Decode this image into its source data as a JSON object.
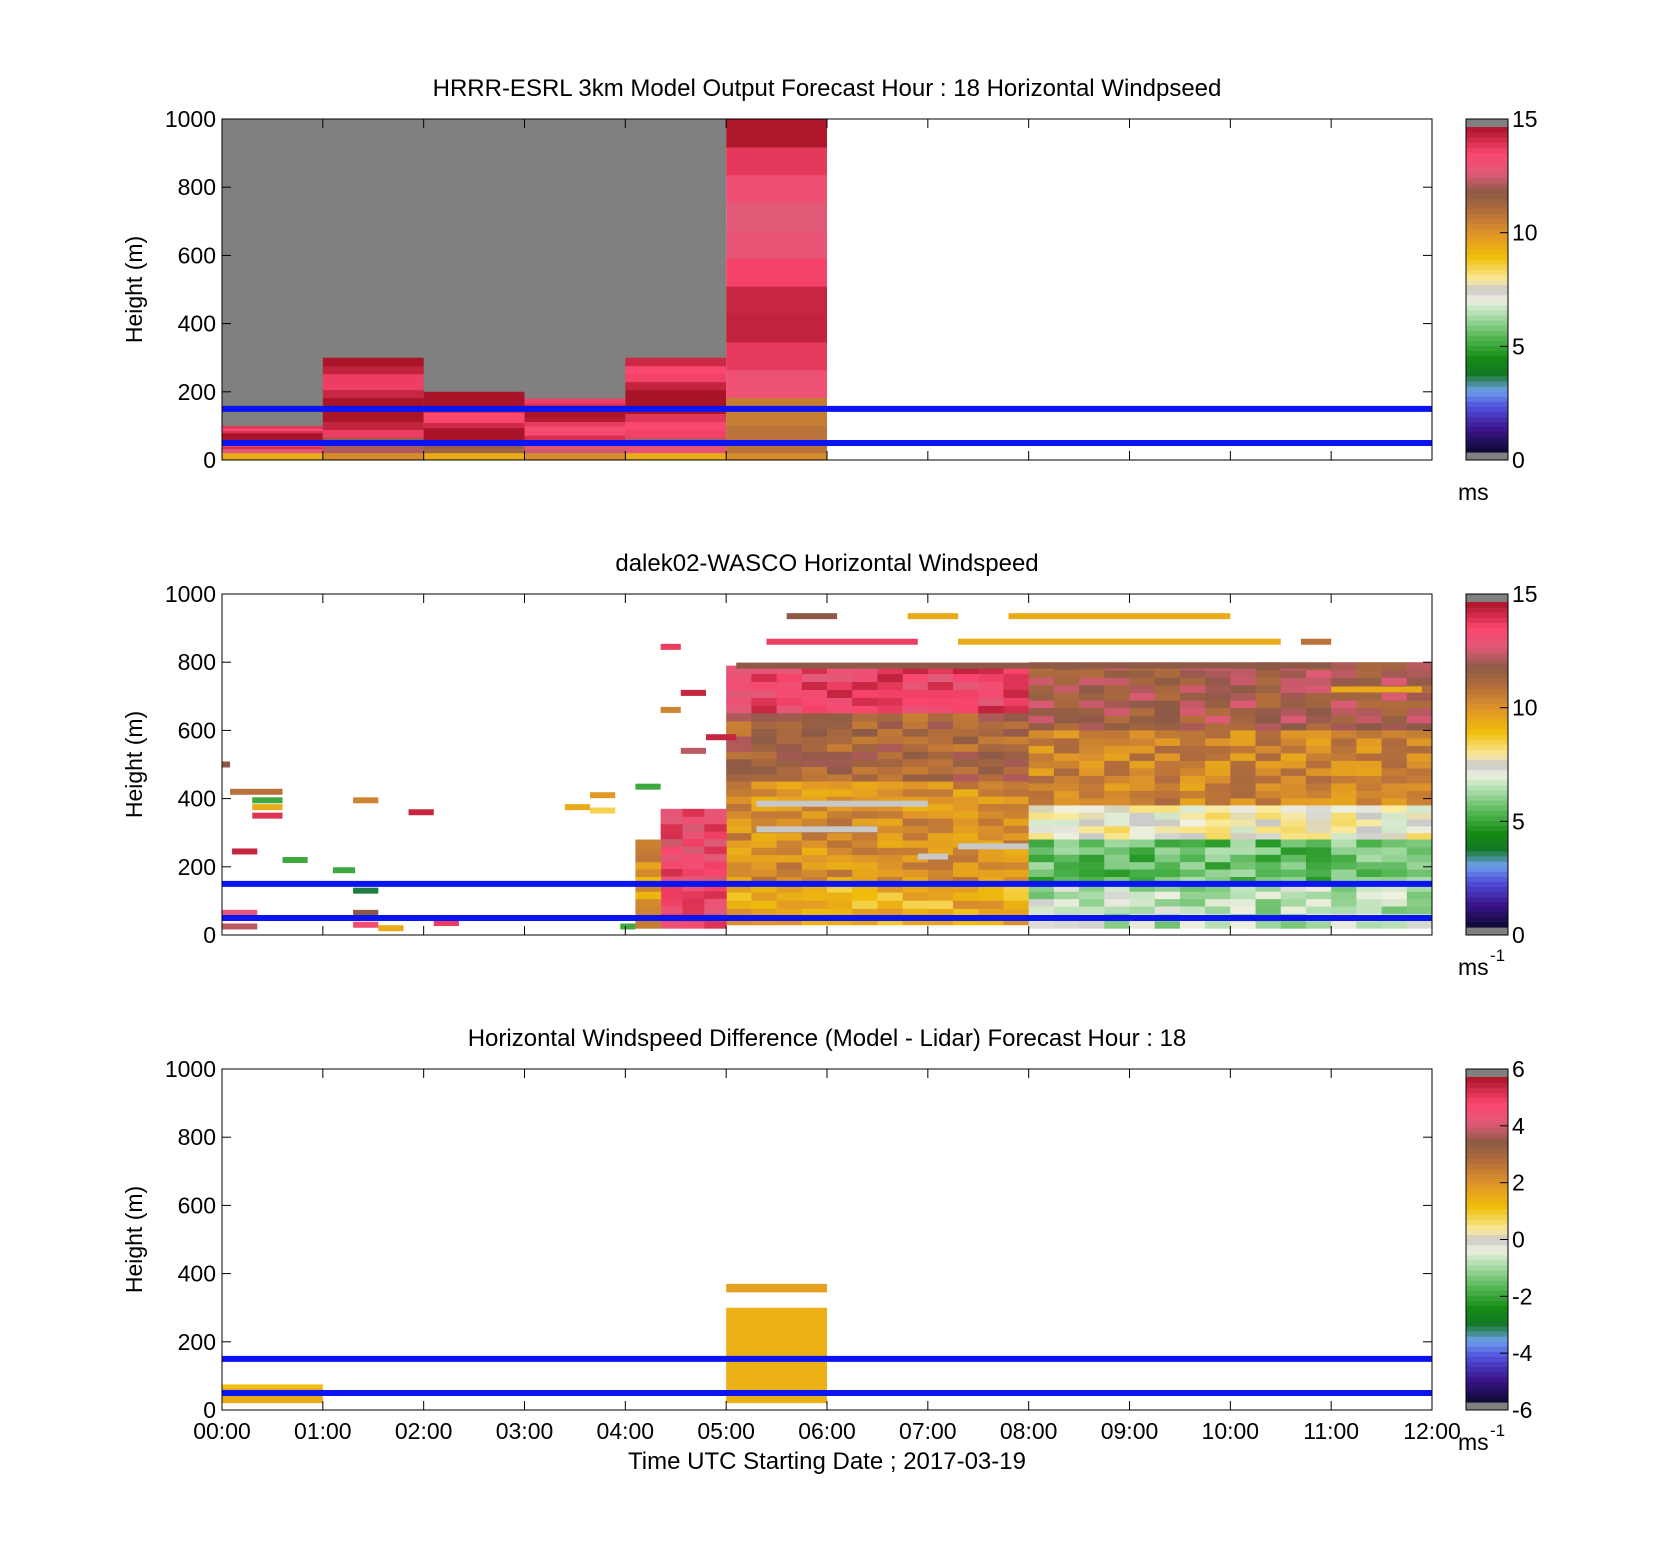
{
  "figure": {
    "xlabel": "Time UTC  Starting Date ; 2017-03-19",
    "x_ticks": [
      "00:00",
      "01:00",
      "02:00",
      "03:00",
      "04:00",
      "05:00",
      "06:00",
      "07:00",
      "08:00",
      "09:00",
      "10:00",
      "11:00",
      "12:00"
    ]
  },
  "chart_data": [
    {
      "type": "heatmap",
      "title": "HRRR-ESRL 3km Model Output   Forecast Hour : 18 Horizontal Windpseed",
      "xlabel": "",
      "ylabel": "Height (m)",
      "xlim_hours": [
        0,
        12
      ],
      "ylim": [
        0,
        1000
      ],
      "y_ticks": [
        "0",
        "200",
        "400",
        "600",
        "800",
        "1000"
      ],
      "colorbar": {
        "min": 0,
        "max": 15,
        "ticks": [
          "0",
          "5",
          "10",
          "15"
        ],
        "unit": "ms"
      },
      "reference_lines_m": [
        50,
        150
      ],
      "columns": [
        {
          "t0": 0,
          "t1": 1,
          "top": 100,
          "value": 14.6
        },
        {
          "t0": 1,
          "t1": 2,
          "top": 300,
          "value": 14.8
        },
        {
          "t0": 2,
          "t1": 3,
          "top": 200,
          "value": 14.6
        },
        {
          "t0": 3,
          "t1": 4,
          "top": 180,
          "value": 14.4
        },
        {
          "t0": 4,
          "t1": 5,
          "top": 300,
          "value": 14.6
        },
        {
          "t0": 5,
          "t1": 6,
          "top": 1000,
          "value": 13.8
        }
      ],
      "missing_region_hours": [
        0,
        5
      ],
      "surface_value": 9.5
    },
    {
      "type": "heatmap",
      "title": "dalek02-WASCO  Horizontal Windspeed",
      "xlabel": "",
      "ylabel": "Height (m)",
      "xlim_hours": [
        0,
        12
      ],
      "ylim": [
        0,
        1000
      ],
      "y_ticks": [
        "0",
        "200",
        "400",
        "600",
        "800",
        "1000"
      ],
      "colorbar": {
        "min": 0,
        "max": 15,
        "ticks": [
          "0",
          "5",
          "10",
          "15"
        ],
        "unit": "ms",
        "unit_exp": "-1"
      },
      "reference_lines_m": [
        50,
        150
      ],
      "layers": [
        {
          "t0": 5.0,
          "t1": 8.0,
          "h0": 650,
          "h1": 790,
          "value": 13.8
        },
        {
          "t0": 5.0,
          "t1": 8.0,
          "h0": 450,
          "h1": 650,
          "value": 11.5
        },
        {
          "t0": 5.0,
          "t1": 8.0,
          "h0": 150,
          "h1": 450,
          "value": 10.2
        },
        {
          "t0": 5.0,
          "t1": 8.0,
          "h0": 30,
          "h1": 150,
          "value": 9.4
        },
        {
          "t0": 8.0,
          "t1": 12.0,
          "h0": 600,
          "h1": 800,
          "value": 12.0
        },
        {
          "t0": 8.0,
          "t1": 12.0,
          "h0": 380,
          "h1": 600,
          "value": 10.5
        },
        {
          "t0": 8.0,
          "t1": 12.0,
          "h0": 280,
          "h1": 380,
          "value": 7.6
        },
        {
          "t0": 8.0,
          "t1": 12.0,
          "h0": 150,
          "h1": 280,
          "value": 5.5
        },
        {
          "t0": 8.0,
          "t1": 12.0,
          "h0": 20,
          "h1": 150,
          "value": 6.5
        },
        {
          "t0": 4.35,
          "t1": 5.0,
          "h0": 20,
          "h1": 370,
          "value": 13.5
        },
        {
          "t0": 4.1,
          "t1": 4.35,
          "h0": 20,
          "h1": 280,
          "value": 10.0
        }
      ],
      "segments": [
        {
          "t0": 0.0,
          "t1": 0.08,
          "h": 500,
          "value": 12.0
        },
        {
          "t0": 0.08,
          "t1": 0.6,
          "h": 420,
          "value": 11.0
        },
        {
          "t0": 0.3,
          "t1": 0.6,
          "h": 395,
          "value": 5.0
        },
        {
          "t0": 0.3,
          "t1": 0.6,
          "h": 375,
          "value": 9.5
        },
        {
          "t0": 0.3,
          "t1": 0.6,
          "h": 350,
          "value": 14.2
        },
        {
          "t0": 0.1,
          "t1": 0.35,
          "h": 245,
          "value": 14.6
        },
        {
          "t0": 0.6,
          "t1": 0.85,
          "h": 220,
          "value": 5.0
        },
        {
          "t0": 1.1,
          "t1": 1.32,
          "h": 190,
          "value": 5.0
        },
        {
          "t0": 0.0,
          "t1": 0.35,
          "h": 65,
          "value": 13.0
        },
        {
          "t0": 0.0,
          "t1": 0.35,
          "h": 25,
          "value": 12.5
        },
        {
          "t0": 1.3,
          "t1": 1.55,
          "h": 130,
          "value": 3.5
        },
        {
          "t0": 1.3,
          "t1": 1.55,
          "h": 65,
          "value": 12.0
        },
        {
          "t0": 1.3,
          "t1": 1.55,
          "h": 30,
          "value": 13.5
        },
        {
          "t0": 1.3,
          "t1": 1.55,
          "h": 395,
          "value": 10.5
        },
        {
          "t0": 1.85,
          "t1": 2.1,
          "h": 360,
          "value": 14.6
        },
        {
          "t0": 2.1,
          "t1": 2.35,
          "h": 35,
          "value": 14.0
        },
        {
          "t0": 1.55,
          "t1": 1.8,
          "h": 20,
          "value": 9.5
        },
        {
          "t0": 3.4,
          "t1": 3.65,
          "h": 375,
          "value": 9.5
        },
        {
          "t0": 3.65,
          "t1": 3.9,
          "h": 410,
          "value": 10.0
        },
        {
          "t0": 3.65,
          "t1": 3.9,
          "h": 365,
          "value": 8.5
        },
        {
          "t0": 4.1,
          "t1": 4.35,
          "h": 435,
          "value": 5.0
        },
        {
          "t0": 3.95,
          "t1": 4.1,
          "h": 25,
          "value": 5.0
        },
        {
          "t0": 4.35,
          "t1": 4.55,
          "h": 845,
          "value": 14.0
        },
        {
          "t0": 4.55,
          "t1": 4.8,
          "h": 710,
          "value": 14.6
        },
        {
          "t0": 4.35,
          "t1": 4.55,
          "h": 660,
          "value": 10.5
        },
        {
          "t0": 4.55,
          "t1": 4.8,
          "h": 540,
          "value": 12.5
        },
        {
          "t0": 4.8,
          "t1": 5.1,
          "h": 580,
          "value": 14.6
        },
        {
          "t0": 5.6,
          "t1": 6.1,
          "h": 935,
          "value": 12.0
        },
        {
          "t0": 5.4,
          "t1": 6.9,
          "h": 860,
          "value": 14.0
        },
        {
          "t0": 5.1,
          "t1": 11.0,
          "h": 790,
          "value": 12.0
        },
        {
          "t0": 6.8,
          "t1": 7.3,
          "h": 935,
          "value": 9.5
        },
        {
          "t0": 7.8,
          "t1": 10.0,
          "h": 935,
          "value": 9.5
        },
        {
          "t0": 7.3,
          "t1": 10.5,
          "h": 860,
          "value": 9.5
        },
        {
          "t0": 10.7,
          "t1": 11.0,
          "h": 860,
          "value": 11.0
        },
        {
          "t0": 11.0,
          "t1": 11.9,
          "h": 720,
          "value": 9.5
        },
        {
          "t0": 5.3,
          "t1": 7.0,
          "h": 385,
          "value": 7.5
        },
        {
          "t0": 5.3,
          "t1": 6.5,
          "h": 310,
          "value": 7.5
        },
        {
          "t0": 7.3,
          "t1": 8.0,
          "h": 260,
          "value": 7.5
        },
        {
          "t0": 6.9,
          "t1": 7.2,
          "h": 230,
          "value": 7.5
        }
      ]
    },
    {
      "type": "heatmap",
      "title": "Horizontal Windspeed Difference (Model - Lidar) Forecast Hour : 18",
      "xlabel": "Time UTC  Starting Date ; 2017-03-19",
      "ylabel": "Height (m)",
      "xlim_hours": [
        0,
        12
      ],
      "ylim": [
        0,
        1000
      ],
      "y_ticks": [
        "0",
        "200",
        "400",
        "600",
        "800",
        "1000"
      ],
      "colorbar": {
        "min": -6,
        "max": 6,
        "ticks": [
          "-6",
          "-4",
          "-2",
          "0",
          "2",
          "4",
          "6"
        ],
        "unit": "ms",
        "unit_exp": "-1"
      },
      "reference_lines_m": [
        50,
        150
      ],
      "cells": [
        {
          "t0": 0,
          "t1": 1,
          "h0": 20,
          "h1": 65,
          "value": 1.6
        },
        {
          "t0": 0,
          "t1": 1,
          "h0": 65,
          "h1": 75,
          "value": 1.2
        },
        {
          "t0": 5,
          "t1": 6,
          "h0": 20,
          "h1": 300,
          "value": 1.5
        },
        {
          "t0": 5,
          "t1": 6,
          "h0": 345,
          "h1": 370,
          "value": 1.8
        }
      ]
    }
  ]
}
